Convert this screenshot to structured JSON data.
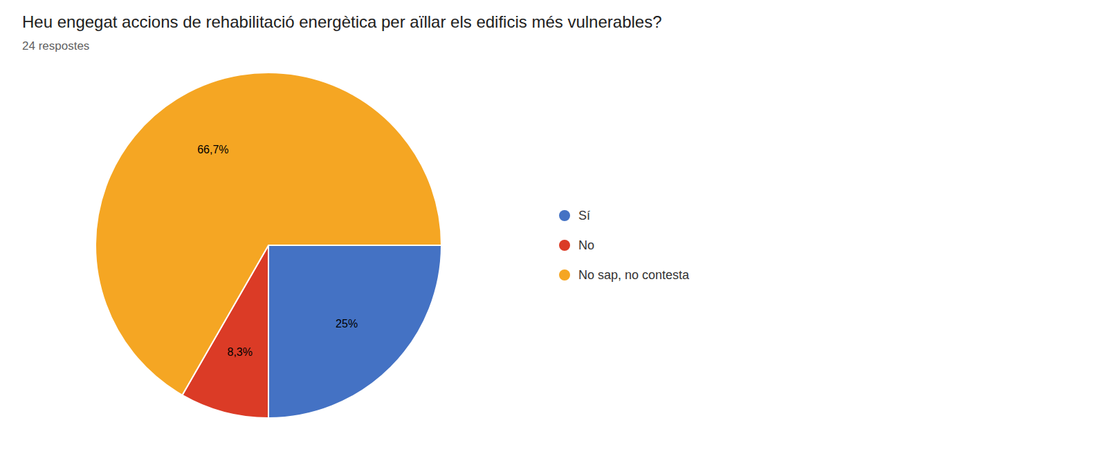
{
  "chart_data": {
    "type": "pie",
    "title": "Heu engegat accions de rehabilitació energètica per aïllar els edificis més vulnerables?",
    "subtitle": "24 respostes",
    "categories": [
      "Sí",
      "No",
      "No sap, no contesta"
    ],
    "values": [
      25.0,
      8.3,
      66.7
    ],
    "value_labels": [
      "25%",
      "8,3%",
      "66,7%"
    ],
    "colors": [
      "#4472c4",
      "#db3b26",
      "#f5a623"
    ],
    "legend": "right",
    "data_labels": true
  }
}
